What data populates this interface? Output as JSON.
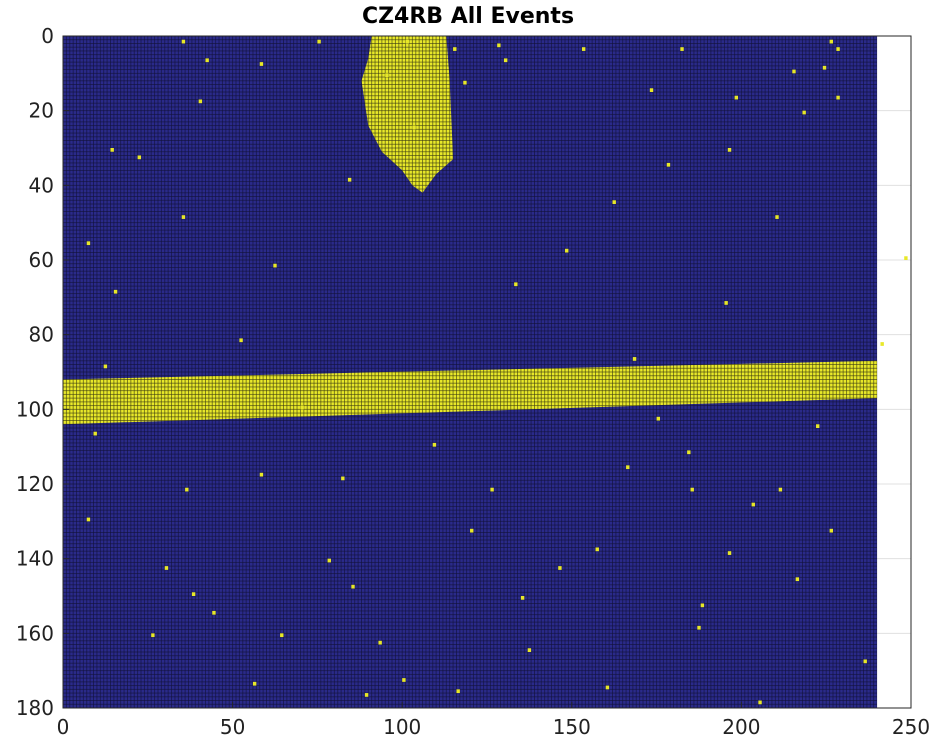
{
  "title": "CZ4RB All Events",
  "chart_data": {
    "type": "heatmap",
    "title": "CZ4RB All Events",
    "xlabel": "",
    "ylabel": "",
    "xlim": [
      0,
      250
    ],
    "ylim": [
      0,
      180
    ],
    "y_reversed": true,
    "x_ticks": [
      0,
      50,
      100,
      150,
      200,
      250
    ],
    "y_ticks": [
      0,
      20,
      40,
      60,
      80,
      100,
      120,
      140,
      160,
      180
    ],
    "grid": "on",
    "columns": 240,
    "rows": 180,
    "colors": {
      "background_cell": "#2a2a8a",
      "event_cell": "#e8e829",
      "cell_edge": "#101038"
    },
    "regions": [
      {
        "name": "blob",
        "x": [
          88,
          113
        ],
        "y": [
          0,
          42
        ]
      },
      {
        "name": "band",
        "x_start": 0,
        "y_top_start": 92,
        "y_bottom_start": 104,
        "x_end": 240,
        "y_top_end": 87,
        "y_bottom_end": 97
      }
    ],
    "scattered_points": [
      [
        35,
        1
      ],
      [
        75,
        1
      ],
      [
        101,
        1
      ],
      [
        226,
        1
      ],
      [
        128,
        2
      ],
      [
        115,
        3
      ],
      [
        153,
        3
      ],
      [
        182,
        3
      ],
      [
        228,
        3
      ],
      [
        42,
        6
      ],
      [
        58,
        7
      ],
      [
        130,
        6
      ],
      [
        224,
        8
      ],
      [
        95,
        10
      ],
      [
        215,
        9
      ],
      [
        118,
        12
      ],
      [
        173,
        14
      ],
      [
        198,
        16
      ],
      [
        228,
        16
      ],
      [
        40,
        17
      ],
      [
        218,
        20
      ],
      [
        103,
        24
      ],
      [
        14,
        30
      ],
      [
        196,
        30
      ],
      [
        22,
        32
      ],
      [
        178,
        34
      ],
      [
        84,
        38
      ],
      [
        162,
        44
      ],
      [
        35,
        48
      ],
      [
        210,
        48
      ],
      [
        7,
        55
      ],
      [
        148,
        57
      ],
      [
        62,
        61
      ],
      [
        133,
        66
      ],
      [
        15,
        68
      ],
      [
        195,
        71
      ],
      [
        52,
        81
      ],
      [
        241,
        82
      ],
      [
        184,
        111
      ],
      [
        58,
        117
      ],
      [
        36,
        121
      ],
      [
        82,
        118
      ],
      [
        185,
        121
      ],
      [
        211,
        121
      ],
      [
        7,
        129
      ],
      [
        157,
        137
      ],
      [
        78,
        140
      ],
      [
        216,
        145
      ],
      [
        38,
        149
      ],
      [
        135,
        150
      ],
      [
        44,
        154
      ],
      [
        187,
        158
      ],
      [
        93,
        162
      ],
      [
        137,
        164
      ],
      [
        56,
        173
      ],
      [
        160,
        174
      ],
      [
        89,
        176
      ],
      [
        205,
        178
      ],
      [
        146,
        142
      ],
      [
        120,
        132
      ],
      [
        188,
        152
      ],
      [
        26,
        160
      ],
      [
        9,
        106
      ],
      [
        109,
        109
      ],
      [
        175,
        102
      ],
      [
        203,
        125
      ],
      [
        226,
        132
      ],
      [
        166,
        115
      ],
      [
        12,
        88
      ],
      [
        222,
        104
      ],
      [
        64,
        160
      ],
      [
        126,
        121
      ],
      [
        100,
        172
      ],
      [
        236,
        167
      ],
      [
        70,
        99
      ],
      [
        196,
        138
      ],
      [
        30,
        142
      ],
      [
        248,
        59
      ],
      [
        116,
        175
      ],
      [
        168,
        86
      ],
      [
        85,
        147
      ]
    ]
  }
}
